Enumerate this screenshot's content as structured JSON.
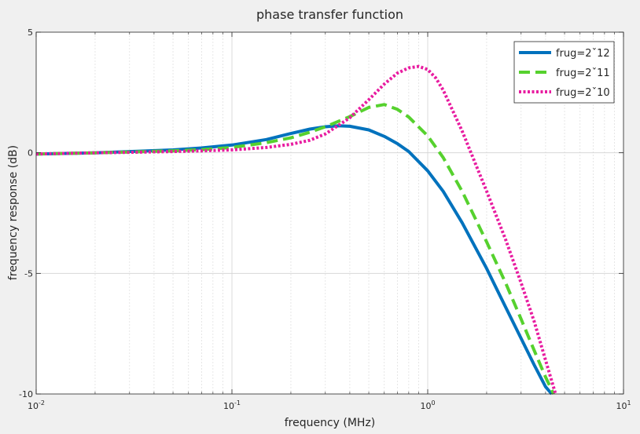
{
  "chart_data": {
    "type": "line",
    "title": "phase transfer function",
    "xlabel": "frequency  (MHz)",
    "ylabel": "frequency response (dB)",
    "xscale": "log",
    "xlim": [
      0.01,
      10
    ],
    "ylim": [
      -10,
      5
    ],
    "grid": true,
    "legend_position": "top-right",
    "x_ticks": [
      {
        "value": 0.01,
        "base": "10",
        "exp": "-2"
      },
      {
        "value": 0.1,
        "base": "10",
        "exp": "-1"
      },
      {
        "value": 1,
        "base": "10",
        "exp": "0"
      },
      {
        "value": 10,
        "base": "10",
        "exp": "1"
      }
    ],
    "y_ticks": [
      {
        "value": -10,
        "label": "-10"
      },
      {
        "value": -5,
        "label": "-5"
      },
      {
        "value": 0,
        "label": "0"
      },
      {
        "value": 5,
        "label": "5"
      }
    ],
    "series": [
      {
        "name": "frug=2ˇ12",
        "color": "#0072BD",
        "style": "solid",
        "x": [
          0.01,
          0.02,
          0.03,
          0.05,
          0.07,
          0.1,
          0.15,
          0.2,
          0.25,
          0.3,
          0.35,
          0.4,
          0.5,
          0.6,
          0.7,
          0.8,
          1.0,
          1.2,
          1.5,
          2.0,
          2.5,
          3.0,
          3.5,
          4.0,
          4.3
        ],
        "y": [
          -0.05,
          0.0,
          0.05,
          0.12,
          0.2,
          0.32,
          0.55,
          0.8,
          0.98,
          1.08,
          1.12,
          1.1,
          0.95,
          0.68,
          0.38,
          0.05,
          -0.75,
          -1.6,
          -2.9,
          -4.8,
          -6.4,
          -7.7,
          -8.8,
          -9.7,
          -10.0
        ]
      },
      {
        "name": "frug=2ˇ11",
        "color": "#56D12E",
        "style": "dashed",
        "x": [
          0.01,
          0.02,
          0.03,
          0.05,
          0.07,
          0.1,
          0.15,
          0.2,
          0.25,
          0.3,
          0.4,
          0.5,
          0.6,
          0.7,
          0.8,
          1.0,
          1.2,
          1.5,
          2.0,
          2.5,
          3.0,
          3.5,
          4.0,
          4.4
        ],
        "y": [
          -0.05,
          0.0,
          0.03,
          0.08,
          0.13,
          0.22,
          0.42,
          0.62,
          0.85,
          1.08,
          1.5,
          1.88,
          2.0,
          1.8,
          1.48,
          0.7,
          -0.2,
          -1.6,
          -3.7,
          -5.4,
          -6.9,
          -8.2,
          -9.3,
          -10.0
        ]
      },
      {
        "name": "frug=2ˇ10",
        "color": "#E81CA0",
        "style": "dotted",
        "x": [
          0.01,
          0.02,
          0.03,
          0.05,
          0.07,
          0.1,
          0.15,
          0.2,
          0.25,
          0.3,
          0.4,
          0.5,
          0.6,
          0.7,
          0.8,
          0.9,
          1.0,
          1.1,
          1.2,
          1.5,
          2.0,
          2.5,
          3.0,
          3.5,
          4.0,
          4.5
        ],
        "y": [
          -0.05,
          0.0,
          0.02,
          0.05,
          0.08,
          0.12,
          0.22,
          0.35,
          0.52,
          0.78,
          1.45,
          2.2,
          2.85,
          3.3,
          3.52,
          3.58,
          3.45,
          3.1,
          2.6,
          0.9,
          -1.6,
          -3.6,
          -5.4,
          -7.0,
          -8.6,
          -10.0
        ]
      }
    ]
  }
}
